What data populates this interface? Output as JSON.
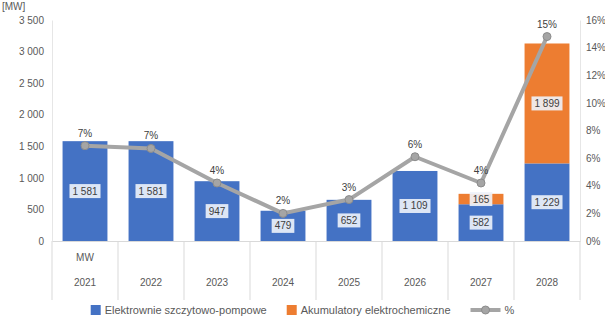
{
  "chart_data": {
    "type": "bar",
    "stacked": true,
    "data_labels": true,
    "grid": false,
    "legend": "bottom",
    "y_label": "[MW]",
    "annotations": [
      "MW"
    ],
    "categories": [
      "2021",
      "2022",
      "2023",
      "2024",
      "2025",
      "2026",
      "2027",
      "2028"
    ],
    "ylim": [
      0,
      3500
    ],
    "yticks": [
      0,
      500,
      {
        "value": 1000,
        "label": "1 000"
      },
      {
        "value": 1500,
        "label": "1 500"
      },
      {
        "value": 2000,
        "label": "2 000"
      },
      {
        "value": 2500,
        "label": "2 500"
      },
      {
        "value": 3000,
        "label": "3 000"
      },
      {
        "value": 3500,
        "label": "3 500"
      }
    ],
    "y2lim": [
      0,
      16
    ],
    "y2ticks": [
      {
        "value": 0,
        "label": "0%"
      },
      {
        "value": 2,
        "label": "2%"
      },
      {
        "value": 4,
        "label": "4%"
      },
      {
        "value": 6,
        "label": "6%"
      },
      {
        "value": 8,
        "label": "8%"
      },
      {
        "value": 10,
        "label": "10%"
      },
      {
        "value": 12,
        "label": "12%"
      },
      {
        "value": 14,
        "label": "14%"
      },
      {
        "value": 16,
        "label": "16%"
      }
    ],
    "series": [
      {
        "name": "Elektrownie szczytowo-pompowe",
        "type": "bar",
        "color": "#4472c4",
        "values": [
          1581,
          1581,
          947,
          479,
          652,
          1109,
          582,
          1229
        ],
        "value_labels": [
          "1 581",
          "1 581",
          "947",
          "479",
          "652",
          "1 109",
          "582",
          "1 229"
        ]
      },
      {
        "name": "Akumulatory elektrochemiczne",
        "type": "bar",
        "color": "#ed7d31",
        "values": [
          null,
          null,
          null,
          null,
          null,
          null,
          165,
          1899
        ],
        "value_labels": [
          null,
          null,
          null,
          null,
          null,
          null,
          "165",
          "1 899"
        ]
      },
      {
        "name": "%",
        "type": "line",
        "axis": "y2",
        "color": "#a5a5a5",
        "marker": "circle",
        "values": [
          6.9,
          6.7,
          4.2,
          2.0,
          3.0,
          6.1,
          4.2,
          14.8
        ],
        "value_labels": [
          "7%",
          "7%",
          "4%",
          "2%",
          "3%",
          "6%",
          "4%",
          "15%"
        ]
      }
    ]
  }
}
